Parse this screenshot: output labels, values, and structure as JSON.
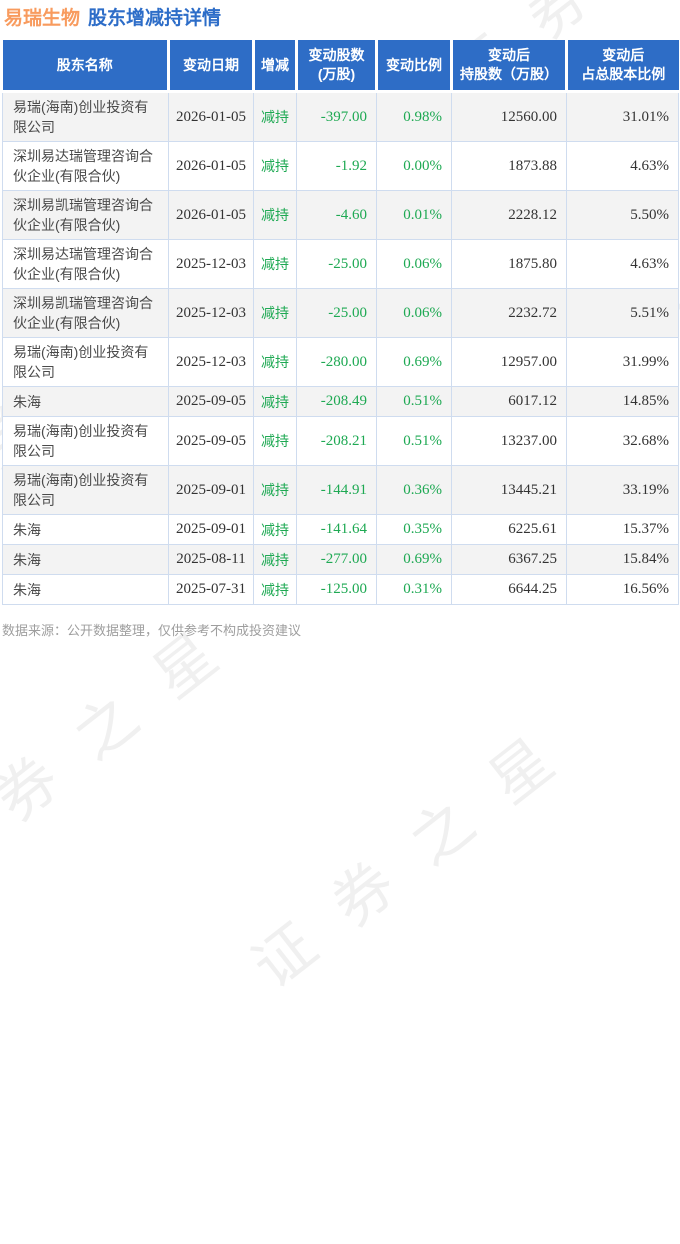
{
  "title": {
    "stock": "易瑞生物",
    "subtitle": "股东增减持详情"
  },
  "watermark": {
    "text": "证券之星"
  },
  "colors": {
    "header_bg": "#2e6dc6",
    "title_stock_orange": "#f89b5e",
    "title_sub_blue": "#2d6dc8",
    "decrease_green": "#1ea953",
    "stripe_gray": "#f3f3f3",
    "cell_border": "#cfdcef"
  },
  "table": {
    "headers": [
      "股东名称",
      "变动日期",
      "增减",
      "变动股数\n(万股)",
      "变动比例",
      "变动后\n持股数（万股）",
      "变动后\n占总股本比例"
    ],
    "rows": [
      {
        "name": "易瑞(海南)创业投资有限公司",
        "date": "2026-01-05",
        "action": "减持",
        "change": "-397.00",
        "change_pct": "0.98%",
        "after_shares": "12560.00",
        "after_pct": "31.01%"
      },
      {
        "name": "深圳易达瑞管理咨询合伙企业(有限合伙)",
        "date": "2026-01-05",
        "action": "减持",
        "change": "-1.92",
        "change_pct": "0.00%",
        "after_shares": "1873.88",
        "after_pct": "4.63%"
      },
      {
        "name": "深圳易凯瑞管理咨询合伙企业(有限合伙)",
        "date": "2026-01-05",
        "action": "减持",
        "change": "-4.60",
        "change_pct": "0.01%",
        "after_shares": "2228.12",
        "after_pct": "5.50%"
      },
      {
        "name": "深圳易达瑞管理咨询合伙企业(有限合伙)",
        "date": "2025-12-03",
        "action": "减持",
        "change": "-25.00",
        "change_pct": "0.06%",
        "after_shares": "1875.80",
        "after_pct": "4.63%"
      },
      {
        "name": "深圳易凯瑞管理咨询合伙企业(有限合伙)",
        "date": "2025-12-03",
        "action": "减持",
        "change": "-25.00",
        "change_pct": "0.06%",
        "after_shares": "2232.72",
        "after_pct": "5.51%"
      },
      {
        "name": "易瑞(海南)创业投资有限公司",
        "date": "2025-12-03",
        "action": "减持",
        "change": "-280.00",
        "change_pct": "0.69%",
        "after_shares": "12957.00",
        "after_pct": "31.99%"
      },
      {
        "name": "朱海",
        "date": "2025-09-05",
        "action": "减持",
        "change": "-208.49",
        "change_pct": "0.51%",
        "after_shares": "6017.12",
        "after_pct": "14.85%"
      },
      {
        "name": "易瑞(海南)创业投资有限公司",
        "date": "2025-09-05",
        "action": "减持",
        "change": "-208.21",
        "change_pct": "0.51%",
        "after_shares": "13237.00",
        "after_pct": "32.68%"
      },
      {
        "name": "易瑞(海南)创业投资有限公司",
        "date": "2025-09-01",
        "action": "减持",
        "change": "-144.91",
        "change_pct": "0.36%",
        "after_shares": "13445.21",
        "after_pct": "33.19%"
      },
      {
        "name": "朱海",
        "date": "2025-09-01",
        "action": "减持",
        "change": "-141.64",
        "change_pct": "0.35%",
        "after_shares": "6225.61",
        "after_pct": "15.37%"
      },
      {
        "name": "朱海",
        "date": "2025-08-11",
        "action": "减持",
        "change": "-277.00",
        "change_pct": "0.69%",
        "after_shares": "6367.25",
        "after_pct": "15.84%"
      },
      {
        "name": "朱海",
        "date": "2025-07-31",
        "action": "减持",
        "change": "-125.00",
        "change_pct": "0.31%",
        "after_shares": "6644.25",
        "after_pct": "16.56%"
      }
    ]
  },
  "footer": {
    "note": "数据来源：公开数据整理，仅供参考不构成投资建议"
  }
}
